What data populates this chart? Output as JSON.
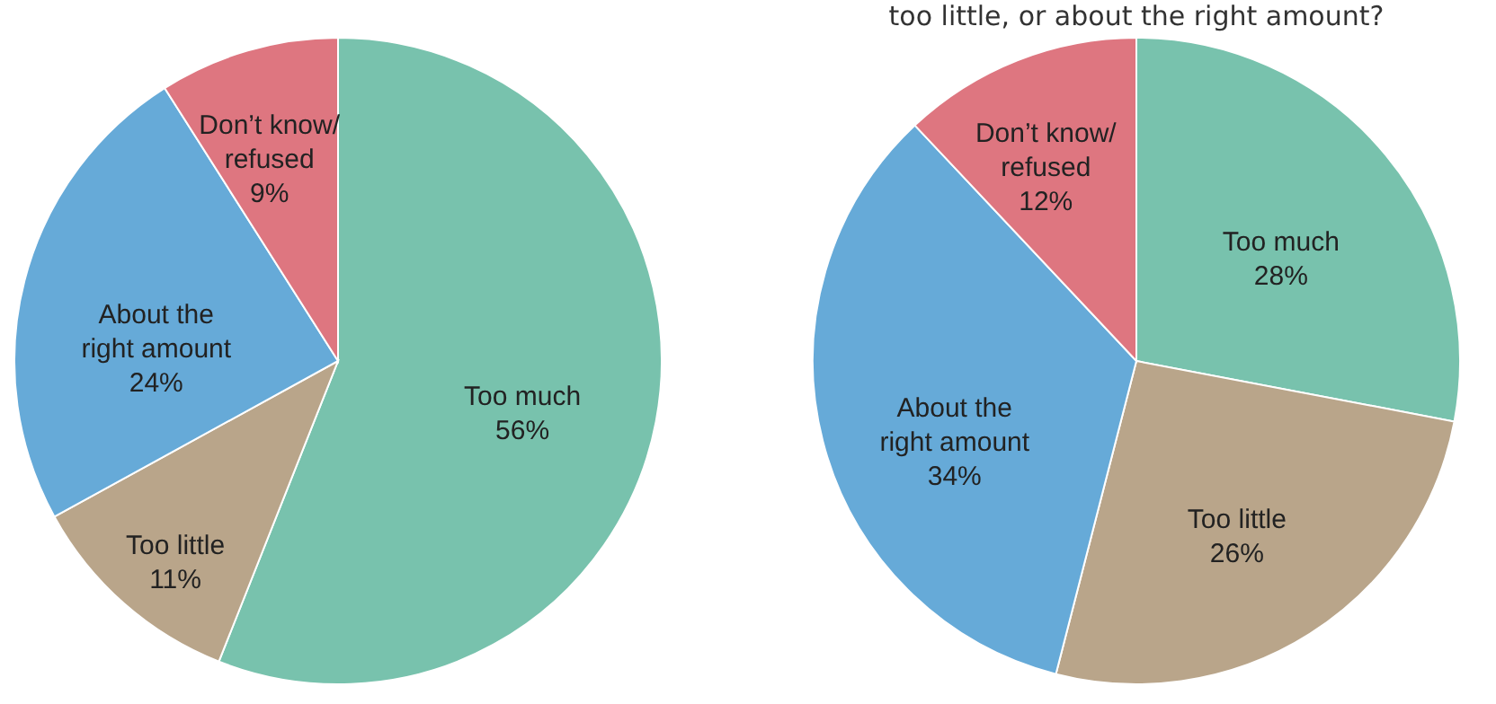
{
  "chart_data": [
    {
      "type": "pie",
      "categories": [
        "Too much",
        "Too little",
        "About the\nright amount",
        "Don’t know/\nrefused"
      ],
      "values": [
        56,
        11,
        24,
        9
      ],
      "value_labels": [
        "56%",
        "11%",
        "24%",
        "9%"
      ],
      "colors": [
        "#78c2ad",
        "#b9a58a",
        "#66aad8",
        "#de7680"
      ],
      "legend": false
    },
    {
      "type": "pie",
      "title": "too little, or about the right amount?",
      "categories": [
        "Too much",
        "Too little",
        "About the\nright amount",
        "Don’t know/\nrefused"
      ],
      "values": [
        28,
        26,
        34,
        12
      ],
      "value_labels": [
        "28%",
        "26%",
        "34%",
        "12%"
      ],
      "colors": [
        "#78c2ad",
        "#b9a58a",
        "#66aad8",
        "#de7680"
      ],
      "legend": false
    }
  ]
}
